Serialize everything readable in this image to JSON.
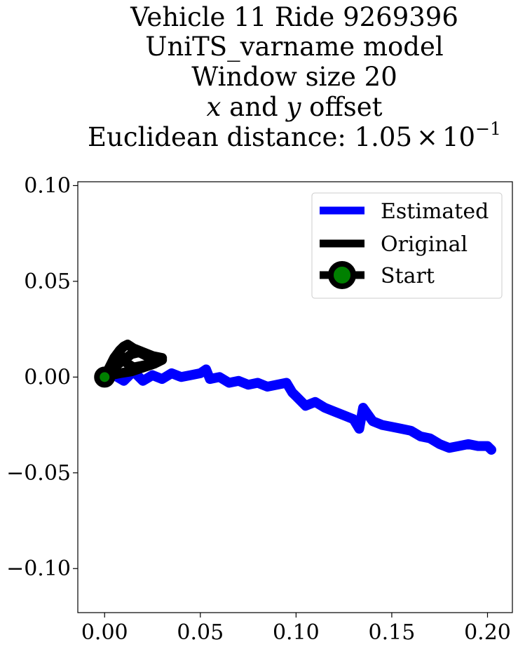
{
  "chart_data": {
    "type": "line",
    "title_lines": [
      "Vehicle 11 Ride 9269396",
      "UniTS_varname model",
      "Window size 20"
    ],
    "title_offset_line": {
      "x": "x",
      "and": " and ",
      "y": "y",
      "rest": " offset"
    },
    "title_distance_line": {
      "prefix": "Euclidean distance: ",
      "mantissa": "1.05",
      "times": "×",
      "base": "10",
      "exponent": "−1"
    },
    "xlabel": "",
    "ylabel": "",
    "xlim": [
      -0.014,
      0.213
    ],
    "ylim": [
      -0.123,
      0.102
    ],
    "x_ticks": [
      0.0,
      0.05,
      0.1,
      0.15,
      0.2
    ],
    "x_tick_labels": [
      "0.00",
      "0.05",
      "0.10",
      "0.15",
      "0.20"
    ],
    "y_ticks": [
      0.1,
      0.05,
      0.0,
      -0.05,
      -0.1
    ],
    "y_tick_labels": [
      "0.10",
      "0.05",
      "0.00",
      "−0.05",
      "−0.10"
    ],
    "grid": false,
    "legend_position": "top-right",
    "legend": [
      "Estimated",
      "Original",
      "Start"
    ],
    "colors": {
      "estimated": "#0000ff",
      "original": "#000000",
      "start_marker": "#008000"
    },
    "series": [
      {
        "name": "Estimated",
        "x": [
          0.0,
          0.005,
          0.01,
          0.015,
          0.02,
          0.025,
          0.03,
          0.035,
          0.04,
          0.045,
          0.05,
          0.053,
          0.055,
          0.06,
          0.065,
          0.07,
          0.075,
          0.08,
          0.085,
          0.09,
          0.095,
          0.098,
          0.1,
          0.105,
          0.11,
          0.115,
          0.12,
          0.125,
          0.13,
          0.133,
          0.135,
          0.14,
          0.145,
          0.15,
          0.155,
          0.16,
          0.165,
          0.17,
          0.175,
          0.18,
          0.185,
          0.19,
          0.195,
          0.2,
          0.202
        ],
        "y": [
          0.0,
          0.001,
          -0.002,
          0.003,
          -0.002,
          0.001,
          -0.001,
          0.002,
          0.0,
          0.001,
          0.002,
          0.004,
          -0.001,
          0.0,
          -0.003,
          -0.002,
          -0.004,
          -0.003,
          -0.005,
          -0.004,
          -0.003,
          -0.008,
          -0.01,
          -0.015,
          -0.013,
          -0.016,
          -0.018,
          -0.02,
          -0.022,
          -0.027,
          -0.016,
          -0.023,
          -0.025,
          -0.026,
          -0.027,
          -0.028,
          -0.031,
          -0.032,
          -0.035,
          -0.037,
          -0.036,
          -0.035,
          -0.036,
          -0.036,
          -0.038
        ]
      },
      {
        "name": "Original",
        "x": [
          0.0,
          0.002,
          0.005,
          0.008,
          0.01,
          0.012,
          0.015,
          0.02,
          0.025,
          0.03,
          0.028,
          0.025,
          0.02,
          0.015,
          0.012,
          0.01,
          0.008,
          0.006,
          0.004,
          0.002,
          0.0,
          0.003,
          0.006,
          0.01,
          0.014,
          0.018,
          0.022,
          0.027,
          0.03,
          0.026,
          0.02,
          0.014,
          0.008,
          0.003,
          0.0
        ],
        "y": [
          0.0,
          0.004,
          0.01,
          0.014,
          0.016,
          0.017,
          0.015,
          0.013,
          0.011,
          0.01,
          0.008,
          0.007,
          0.006,
          0.005,
          0.007,
          0.009,
          0.012,
          0.01,
          0.007,
          0.004,
          0.002,
          0.004,
          0.006,
          0.009,
          0.012,
          0.013,
          0.011,
          0.01,
          0.009,
          0.007,
          0.005,
          0.003,
          0.002,
          0.001,
          0.0
        ]
      }
    ],
    "start_point": {
      "name": "Start",
      "x": 0.0,
      "y": 0.0
    }
  }
}
